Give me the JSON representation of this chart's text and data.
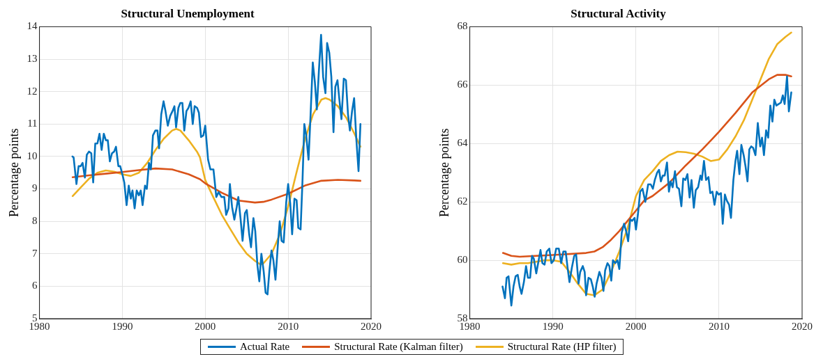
{
  "chart_data": [
    {
      "type": "line",
      "title": "Structural Unemployment",
      "ylabel": "Percentage points",
      "xlim": [
        1980,
        2020
      ],
      "xticks": [
        1980,
        1990,
        2000,
        2010,
        2020
      ],
      "ylim": [
        5,
        14
      ],
      "yticks": [
        5,
        6,
        7,
        8,
        9,
        10,
        11,
        12,
        13,
        14
      ],
      "grid": true,
      "legend": "bottom",
      "line_style": "solid",
      "marker": "none",
      "series": [
        {
          "name": "Actual Rate",
          "color": "#0072bd",
          "x": [
            1983.98,
            1984.12,
            1984.46,
            1984.72,
            1984.97,
            1985.2,
            1985.48,
            1985.71,
            1985.97,
            1986.25,
            1986.48,
            1986.73,
            1986.99,
            1987.24,
            1987.5,
            1987.76,
            1988.01,
            1988.24,
            1988.49,
            1988.75,
            1989.01,
            1989.23,
            1989.52,
            1989.74,
            1990.0,
            1990.23,
            1990.51,
            1990.77,
            1991.02,
            1991.22,
            1991.48,
            1991.73,
            1991.99,
            1992.22,
            1992.44,
            1992.73,
            1992.95,
            1993.21,
            1993.44,
            1993.69,
            1993.98,
            1994.23,
            1994.43,
            1994.69,
            1994.97,
            1995.2,
            1995.48,
            1995.77,
            1996.05,
            1996.28,
            1996.48,
            1996.76,
            1996.99,
            1997.24,
            1997.47,
            1997.73,
            1997.98,
            1998.24,
            1998.49,
            1998.72,
            1999.01,
            1999.23,
            1999.49,
            1999.77,
            2000.0,
            2000.34,
            2000.62,
            2000.99,
            2001.33,
            2001.61,
            2001.95,
            2002.29,
            2002.52,
            2002.8,
            2002.97,
            2003.23,
            2003.51,
            2003.8,
            2003.99,
            2004.25,
            2004.5,
            2004.79,
            2005.01,
            2005.3,
            2005.52,
            2005.81,
            2006.03,
            2006.29,
            2006.52,
            2006.77,
            2007.05,
            2007.28,
            2007.51,
            2007.73,
            2007.99,
            2008.22,
            2008.47,
            2008.75,
            2008.98,
            2009.21,
            2009.46,
            2009.77,
            2010.0,
            2010.25,
            2010.48,
            2010.76,
            2011.02,
            2011.22,
            2011.5,
            2011.73,
            2011.95,
            2012.18,
            2012.46,
            2012.69,
            2012.97,
            2013.22,
            2013.46,
            2013.71,
            2013.97,
            2014.22,
            2014.5,
            2014.7,
            2014.96,
            2015.21,
            2015.47,
            2015.69,
            2015.95,
            2016.2,
            2016.43,
            2016.71,
            2016.97,
            2017.22,
            2017.45,
            2017.71,
            2017.96,
            2018.22,
            2018.49,
            2018.72
          ],
          "values": [
            10.0,
            9.97,
            9.15,
            9.7,
            9.7,
            9.8,
            9.35,
            10.05,
            10.15,
            10.1,
            9.2,
            10.4,
            10.4,
            10.7,
            10.2,
            10.7,
            10.5,
            10.5,
            9.85,
            10.1,
            10.15,
            10.3,
            9.7,
            9.7,
            9.45,
            9.2,
            8.5,
            9.1,
            8.7,
            8.95,
            8.4,
            8.95,
            8.8,
            8.95,
            8.5,
            9.1,
            9.0,
            9.8,
            9.6,
            10.65,
            10.8,
            10.8,
            10.25,
            11.3,
            11.7,
            11.4,
            10.95,
            11.25,
            11.4,
            11.55,
            10.9,
            11.5,
            11.65,
            11.65,
            10.8,
            11.4,
            11.5,
            11.7,
            11.0,
            11.55,
            11.5,
            11.35,
            10.6,
            10.65,
            10.95,
            9.9,
            9.6,
            9.6,
            8.75,
            8.9,
            8.75,
            8.75,
            8.2,
            8.4,
            9.15,
            8.45,
            8.05,
            8.45,
            8.75,
            8.1,
            7.4,
            8.25,
            8.35,
            7.6,
            7.2,
            8.1,
            7.7,
            6.65,
            6.15,
            7.0,
            6.45,
            5.8,
            5.75,
            6.45,
            7.1,
            6.8,
            6.2,
            7.25,
            8.0,
            7.4,
            7.35,
            8.6,
            9.15,
            8.55,
            7.6,
            8.7,
            8.65,
            7.8,
            7.75,
            9.25,
            11.0,
            10.65,
            9.9,
            11.2,
            12.9,
            12.3,
            11.45,
            12.65,
            13.75,
            12.45,
            11.95,
            13.5,
            13.2,
            12.45,
            10.75,
            12.15,
            12.35,
            11.7,
            11.15,
            12.4,
            12.35,
            11.3,
            10.8,
            11.4,
            11.8,
            10.55,
            9.55,
            11.0
          ]
        },
        {
          "name": "Structural Rate (Kalman filter)",
          "color": "#d95319",
          "x": [
            1984,
            1986,
            1988,
            1990,
            1992,
            1994,
            1996,
            1998,
            1999.35,
            2000,
            2002,
            2004,
            2006,
            2007,
            2008,
            2010,
            2012,
            2014,
            2016,
            2018,
            2018.72
          ],
          "values": [
            9.36,
            9.42,
            9.47,
            9.52,
            9.58,
            9.63,
            9.6,
            9.45,
            9.3,
            9.17,
            8.88,
            8.64,
            8.58,
            8.6,
            8.67,
            8.85,
            9.1,
            9.25,
            9.28,
            9.26,
            9.25
          ]
        },
        {
          "name": "Structural Rate (HP filter)",
          "color": "#edb120",
          "x": [
            1984,
            1985,
            1986,
            1987,
            1988,
            1989,
            1990,
            1991,
            1992,
            1993,
            1994,
            1995,
            1996,
            1996.5,
            1997,
            1998,
            1999,
            1999.35,
            2000,
            2001,
            2002,
            2003,
            2004,
            2005,
            2006,
            2006.66,
            2007,
            2008,
            2009,
            2010,
            2011,
            2012,
            2013,
            2014,
            2014.5,
            2015,
            2016,
            2017,
            2018,
            2018.72
          ],
          "values": [
            8.78,
            9.05,
            9.32,
            9.5,
            9.57,
            9.53,
            9.45,
            9.4,
            9.5,
            9.8,
            10.2,
            10.55,
            10.8,
            10.85,
            10.8,
            10.5,
            10.15,
            9.98,
            9.27,
            8.73,
            8.2,
            7.77,
            7.35,
            7.0,
            6.78,
            6.67,
            6.7,
            7.0,
            7.6,
            8.45,
            9.5,
            10.5,
            11.3,
            11.75,
            11.8,
            11.75,
            11.55,
            11.2,
            10.7,
            10.3
          ]
        }
      ]
    },
    {
      "type": "line",
      "title": "Structural Activity",
      "ylabel": "Percentage points",
      "xlim": [
        1980,
        2020
      ],
      "xticks": [
        1980,
        1990,
        2000,
        2010,
        2020
      ],
      "ylim": [
        58,
        68
      ],
      "yticks": [
        58,
        60,
        62,
        64,
        66,
        68
      ],
      "grid": true,
      "line_style": "solid",
      "marker": "none",
      "series": [
        {
          "color": "#0072bd",
          "x": [
            1983.94,
            1984.23,
            1984.43,
            1984.66,
            1985.0,
            1985.26,
            1985.51,
            1985.77,
            1986.0,
            1986.23,
            1986.51,
            1986.77,
            1987.0,
            1987.26,
            1987.49,
            1987.71,
            1988.0,
            1988.29,
            1988.51,
            1988.74,
            1989.0,
            1989.26,
            1989.57,
            1989.83,
            1990.11,
            1990.4,
            1990.71,
            1991.0,
            1991.26,
            1991.54,
            1991.77,
            1992.0,
            1992.29,
            1992.57,
            1992.8,
            1993.09,
            1993.29,
            1993.6,
            1993.83,
            1994.0,
            1994.29,
            1994.57,
            1994.8,
            1995.03,
            1995.26,
            1995.6,
            1995.86,
            1996.09,
            1996.29,
            1996.57,
            1996.8,
            1997.03,
            1997.23,
            1997.51,
            1997.77,
            1998.0,
            1998.29,
            1998.57,
            1998.86,
            1999.06,
            1999.31,
            1999.54,
            1999.83,
            2000.0,
            2000.23,
            2000.51,
            2000.79,
            2001.13,
            2001.47,
            2001.78,
            2002.04,
            2002.27,
            2002.55,
            2002.78,
            2003.0,
            2003.23,
            2003.46,
            2003.74,
            2003.97,
            2004.19,
            2004.42,
            2004.7,
            2004.93,
            2005.18,
            2005.47,
            2005.69,
            2005.95,
            2006.2,
            2006.46,
            2006.69,
            2006.97,
            2007.2,
            2007.48,
            2007.76,
            2007.93,
            2008.19,
            2008.44,
            2008.73,
            2008.95,
            2009.21,
            2009.46,
            2009.72,
            2009.97,
            2010.23,
            2010.45,
            2010.71,
            2010.93,
            2011.22,
            2011.44,
            2011.73,
            2011.98,
            2012.18,
            2012.46,
            2012.69,
            2012.97,
            2013.2,
            2013.43,
            2013.65,
            2013.88,
            2014.11,
            2014.39,
            2014.67,
            2014.96,
            2015.18,
            2015.41,
            2015.67,
            2015.92,
            2016.18,
            2016.43,
            2016.66,
            2016.91,
            2017.17,
            2017.45,
            2017.68,
            2017.9,
            2018.19,
            2018.41,
            2018.7
          ],
          "values": [
            59.1,
            58.7,
            59.4,
            59.45,
            58.45,
            59.1,
            59.45,
            59.5,
            59.1,
            58.85,
            59.25,
            59.8,
            59.4,
            59.4,
            60.15,
            60.05,
            59.55,
            60.0,
            60.35,
            59.9,
            59.85,
            60.3,
            60.4,
            59.9,
            60.0,
            60.4,
            60.4,
            59.9,
            60.3,
            60.3,
            59.75,
            59.25,
            59.75,
            60.15,
            60.2,
            59.2,
            59.6,
            59.8,
            59.6,
            58.8,
            59.4,
            59.35,
            59.1,
            58.75,
            59.2,
            59.6,
            59.4,
            58.95,
            59.65,
            59.9,
            59.8,
            59.3,
            60.0,
            59.9,
            60.0,
            59.7,
            60.95,
            61.25,
            60.95,
            60.65,
            61.4,
            61.35,
            61.45,
            61.05,
            61.55,
            62.35,
            62.45,
            62.0,
            62.6,
            62.6,
            62.45,
            62.75,
            63.0,
            63.1,
            62.7,
            62.9,
            62.9,
            63.35,
            62.35,
            62.7,
            62.5,
            63.05,
            62.5,
            62.45,
            61.85,
            62.8,
            62.75,
            62.95,
            62.15,
            62.75,
            61.8,
            62.4,
            62.5,
            62.9,
            62.75,
            63.4,
            62.75,
            62.85,
            62.3,
            62.35,
            61.9,
            62.35,
            62.25,
            62.3,
            61.25,
            62.25,
            62.05,
            61.9,
            61.45,
            62.75,
            63.4,
            63.75,
            62.95,
            63.95,
            63.6,
            63.2,
            62.7,
            63.8,
            63.9,
            63.85,
            63.6,
            64.7,
            63.9,
            64.2,
            63.6,
            64.45,
            64.2,
            65.3,
            64.75,
            65.5,
            65.3,
            65.35,
            65.4,
            65.65,
            65.35,
            66.3,
            65.1,
            65.75
          ]
        },
        {
          "color": "#d95319",
          "x": [
            1984,
            1985,
            1986,
            1990,
            1994,
            1995,
            1996,
            1997,
            1998,
            1999,
            2000,
            2001,
            2002,
            2004,
            2006,
            2008,
            2009,
            2010,
            2012,
            2014,
            2016,
            2017,
            2018,
            2018.7
          ],
          "values": [
            60.25,
            60.15,
            60.12,
            60.18,
            60.25,
            60.3,
            60.45,
            60.7,
            61.0,
            61.35,
            61.7,
            62.05,
            62.2,
            62.65,
            63.25,
            63.8,
            64.1,
            64.4,
            65.05,
            65.75,
            66.2,
            66.35,
            66.35,
            66.3
          ]
        },
        {
          "color": "#edb120",
          "x": [
            1984,
            1985,
            1986,
            1987,
            1988,
            1989,
            1990,
            1991,
            1992,
            1993,
            1994,
            1995,
            1996,
            1997,
            1998,
            1999,
            2000,
            2001,
            2002,
            2003,
            2004,
            2005,
            2006,
            2007,
            2008,
            2009,
            2010,
            2011,
            2012,
            2013,
            2014,
            2015,
            2016,
            2017,
            2018,
            2018.7
          ],
          "values": [
            59.9,
            59.85,
            59.9,
            59.9,
            59.95,
            60.0,
            60.0,
            59.95,
            59.6,
            59.2,
            58.85,
            58.8,
            59.0,
            59.6,
            60.3,
            61.1,
            62.2,
            62.75,
            63.05,
            63.4,
            63.6,
            63.72,
            63.7,
            63.65,
            63.55,
            63.4,
            63.45,
            63.8,
            64.25,
            64.8,
            65.5,
            66.2,
            66.9,
            67.4,
            67.65,
            67.8
          ]
        }
      ]
    }
  ]
}
